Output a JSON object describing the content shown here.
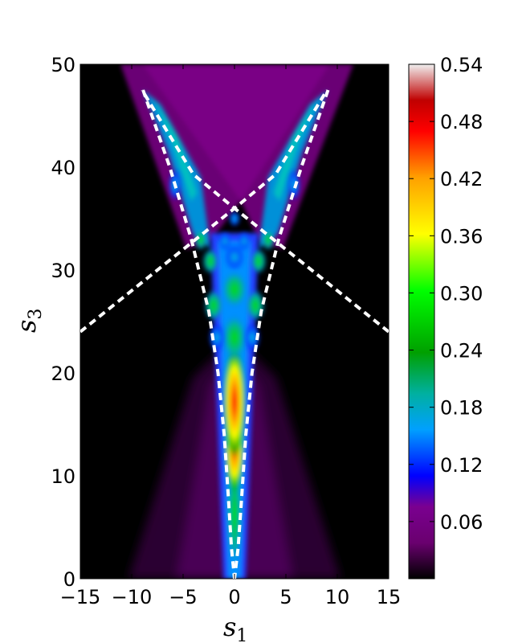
{
  "chart_data": {
    "type": "heatmap",
    "title": "",
    "xlabel": "s",
    "xlabel_subscript": "1",
    "ylabel": "s",
    "ylabel_subscript": "3",
    "xlim": [
      -15,
      15
    ],
    "ylim": [
      0,
      50
    ],
    "x_ticks": [
      -15,
      -10,
      -5,
      0,
      5,
      10,
      15
    ],
    "x_tick_labels": [
      "−15",
      "−10",
      "−5",
      "0",
      "5",
      "10",
      "15"
    ],
    "y_ticks": [
      0,
      10,
      20,
      30,
      40,
      50
    ],
    "y_tick_labels": [
      "0",
      "10",
      "20",
      "30",
      "40",
      "50"
    ],
    "grid": false,
    "colorbar": {
      "range": [
        0,
        0.54
      ],
      "ticks": [
        0.06,
        0.12,
        0.18,
        0.24,
        0.3,
        0.36,
        0.42,
        0.48,
        0.54
      ],
      "tick_labels": [
        "0.06",
        "0.12",
        "0.18",
        "0.24",
        "0.30",
        "0.36",
        "0.42",
        "0.48",
        "0.54"
      ],
      "colormap": [
        "#000000",
        "#7a007f",
        "#0000ff",
        "#00a0ff",
        "#00b0a0",
        "#00a000",
        "#00ff00",
        "#ffff00",
        "#ffa000",
        "#ff0000",
        "#ffffff"
      ]
    },
    "dashed_curves": [
      {
        "style": "white-dashed",
        "points": [
          [
            -8.9,
            47.5
          ],
          [
            -6.3,
            40
          ],
          [
            -4.2,
            33
          ],
          [
            -2.5,
            26
          ],
          [
            -1.6,
            20
          ],
          [
            -1.0,
            14
          ],
          [
            -0.6,
            8
          ],
          [
            -0.3,
            3
          ],
          [
            0,
            0
          ]
        ]
      },
      {
        "style": "white-dashed",
        "points": [
          [
            9.1,
            47.5
          ],
          [
            6.5,
            40
          ],
          [
            4.3,
            33
          ],
          [
            2.6,
            26
          ],
          [
            1.7,
            20
          ],
          [
            1.1,
            14
          ],
          [
            0.7,
            8
          ],
          [
            0.35,
            3
          ],
          [
            0,
            0
          ]
        ]
      },
      {
        "style": "white-dashed",
        "points": [
          [
            -15,
            24
          ],
          [
            -10,
            28
          ],
          [
            -5,
            32
          ],
          [
            0,
            36
          ],
          [
            4,
            39.3
          ],
          [
            9,
            47.5
          ]
        ]
      },
      {
        "style": "white-dashed",
        "points": [
          [
            15,
            24
          ],
          [
            10,
            28
          ],
          [
            5,
            32
          ],
          [
            0,
            36
          ],
          [
            -4,
            39.3
          ],
          [
            -9,
            47.5
          ]
        ]
      }
    ]
  }
}
